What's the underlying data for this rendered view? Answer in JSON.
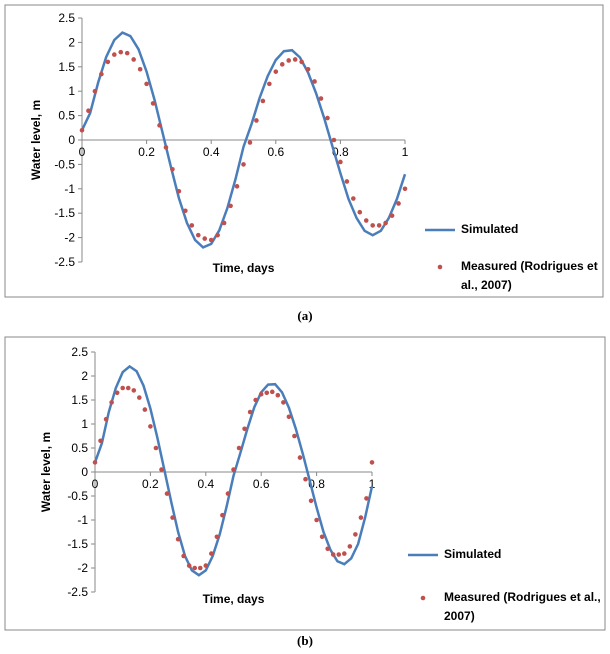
{
  "chart_data": [
    {
      "type": "line",
      "caption": "(a)",
      "xlabel": "Time, days",
      "ylabel": "Water level, m",
      "xlim": [
        0,
        1
      ],
      "xticks": [
        0,
        0.2,
        0.4,
        0.6,
        0.8,
        1
      ],
      "ylim": [
        -2.5,
        2.5
      ],
      "yticks": [
        -2.5,
        -2,
        -1.5,
        -1,
        -0.5,
        0,
        0.5,
        1,
        1.5,
        2,
        2.5
      ],
      "series": [
        {
          "name": "Simulated",
          "type": "line",
          "color": "#4a7ebb",
          "x": [
            0,
            0.025,
            0.05,
            0.075,
            0.1,
            0.125,
            0.15,
            0.175,
            0.2,
            0.225,
            0.25,
            0.275,
            0.3,
            0.325,
            0.35,
            0.375,
            0.4,
            0.425,
            0.45,
            0.475,
            0.5,
            0.525,
            0.55,
            0.575,
            0.6,
            0.625,
            0.65,
            0.675,
            0.7,
            0.725,
            0.75,
            0.775,
            0.8,
            0.825,
            0.85,
            0.875,
            0.9,
            0.925,
            0.95,
            0.975,
            1
          ],
          "values": [
            0.2,
            0.55,
            1.18,
            1.7,
            2.05,
            2.2,
            2.13,
            1.86,
            1.4,
            0.81,
            0.13,
            -0.54,
            -1.19,
            -1.7,
            -2.05,
            -2.2,
            -2.13,
            -1.85,
            -1.4,
            -0.81,
            -0.14,
            0.33,
            0.86,
            1.31,
            1.64,
            1.82,
            1.84,
            1.69,
            1.38,
            0.95,
            0.44,
            -0.12,
            -0.68,
            -1.21,
            -1.6,
            -1.86,
            -1.95,
            -1.86,
            -1.6,
            -1.21,
            -0.7
          ]
        },
        {
          "name": "Measured (Rodrigues et al., 2007)",
          "type": "scatter",
          "color": "#c0504d",
          "x": [
            0,
            0.02,
            0.04,
            0.06,
            0.08,
            0.1,
            0.12,
            0.14,
            0.16,
            0.18,
            0.2,
            0.22,
            0.24,
            0.26,
            0.28,
            0.3,
            0.32,
            0.34,
            0.36,
            0.38,
            0.4,
            0.42,
            0.44,
            0.46,
            0.48,
            0.5,
            0.52,
            0.54,
            0.56,
            0.58,
            0.6,
            0.62,
            0.64,
            0.66,
            0.68,
            0.7,
            0.72,
            0.74,
            0.76,
            0.78,
            0.8,
            0.82,
            0.84,
            0.86,
            0.88,
            0.9,
            0.92,
            0.94,
            0.96,
            0.98,
            1
          ],
          "values": [
            0.2,
            0.6,
            1.0,
            1.35,
            1.6,
            1.75,
            1.8,
            1.78,
            1.65,
            1.45,
            1.15,
            0.75,
            0.3,
            -0.15,
            -0.6,
            -1.05,
            -1.45,
            -1.75,
            -1.95,
            -2.02,
            -2.05,
            -1.95,
            -1.7,
            -1.35,
            -0.95,
            -0.5,
            -0.05,
            0.4,
            0.8,
            1.15,
            1.4,
            1.55,
            1.63,
            1.65,
            1.6,
            1.45,
            1.2,
            0.85,
            0.45,
            0.0,
            -0.45,
            -0.85,
            -1.2,
            -1.48,
            -1.65,
            -1.75,
            -1.75,
            -1.7,
            -1.55,
            -1.3,
            -1.0
          ]
        }
      ]
    },
    {
      "type": "line",
      "caption": "(b)",
      "xlabel": "Time, days",
      "ylabel": "Water level, m",
      "xlim": [
        0,
        1
      ],
      "xticks": [
        0,
        0.2,
        0.4,
        0.6,
        0.8,
        1
      ],
      "ylim": [
        -2.5,
        2.5
      ],
      "yticks": [
        -2.5,
        -2,
        -1.5,
        -1,
        -0.5,
        0,
        0.5,
        1,
        1.5,
        2,
        2.5
      ],
      "series": [
        {
          "name": "Simulated",
          "type": "line",
          "color": "#4a7ebb",
          "x": [
            0,
            0.025,
            0.05,
            0.075,
            0.1,
            0.125,
            0.15,
            0.175,
            0.2,
            0.225,
            0.25,
            0.275,
            0.3,
            0.325,
            0.35,
            0.375,
            0.4,
            0.425,
            0.45,
            0.475,
            0.5,
            0.525,
            0.55,
            0.575,
            0.6,
            0.625,
            0.65,
            0.675,
            0.7,
            0.725,
            0.75,
            0.775,
            0.8,
            0.825,
            0.85,
            0.875,
            0.9,
            0.925,
            0.95,
            0.975,
            1
          ],
          "values": [
            0.2,
            0.6,
            1.25,
            1.75,
            2.08,
            2.2,
            2.1,
            1.8,
            1.32,
            0.72,
            0.05,
            -0.62,
            -1.25,
            -1.75,
            -2.05,
            -2.15,
            -2.05,
            -1.75,
            -1.3,
            -0.72,
            -0.08,
            0.4,
            0.9,
            1.35,
            1.66,
            1.82,
            1.83,
            1.66,
            1.34,
            0.9,
            0.38,
            -0.18,
            -0.74,
            -1.25,
            -1.62,
            -1.86,
            -1.92,
            -1.8,
            -1.5,
            -0.95,
            -0.3
          ]
        },
        {
          "name": "Measured (Rodrigues et al., 2007)",
          "type": "scatter",
          "color": "#c0504d",
          "x": [
            0,
            0.02,
            0.04,
            0.06,
            0.08,
            0.1,
            0.12,
            0.14,
            0.16,
            0.18,
            0.2,
            0.22,
            0.24,
            0.26,
            0.28,
            0.3,
            0.32,
            0.34,
            0.36,
            0.38,
            0.4,
            0.42,
            0.44,
            0.46,
            0.48,
            0.5,
            0.52,
            0.54,
            0.56,
            0.58,
            0.6,
            0.62,
            0.64,
            0.66,
            0.68,
            0.7,
            0.72,
            0.74,
            0.76,
            0.78,
            0.8,
            0.82,
            0.84,
            0.86,
            0.88,
            0.9,
            0.92,
            0.94,
            0.96,
            0.98,
            1
          ],
          "values": [
            0.2,
            0.65,
            1.1,
            1.45,
            1.65,
            1.75,
            1.75,
            1.7,
            1.55,
            1.3,
            0.95,
            0.5,
            0.05,
            -0.45,
            -0.95,
            -1.4,
            -1.75,
            -1.95,
            -2.0,
            -2.0,
            -1.95,
            -1.7,
            -1.35,
            -0.9,
            -0.45,
            0.05,
            0.5,
            0.9,
            1.25,
            1.5,
            1.62,
            1.65,
            1.67,
            1.6,
            1.45,
            1.15,
            0.75,
            0.3,
            -0.15,
            -0.6,
            -1.0,
            -1.35,
            -1.6,
            -1.72,
            -1.72,
            -1.7,
            -1.55,
            -1.3,
            -0.95,
            -0.55,
            0.2
          ]
        }
      ]
    }
  ]
}
